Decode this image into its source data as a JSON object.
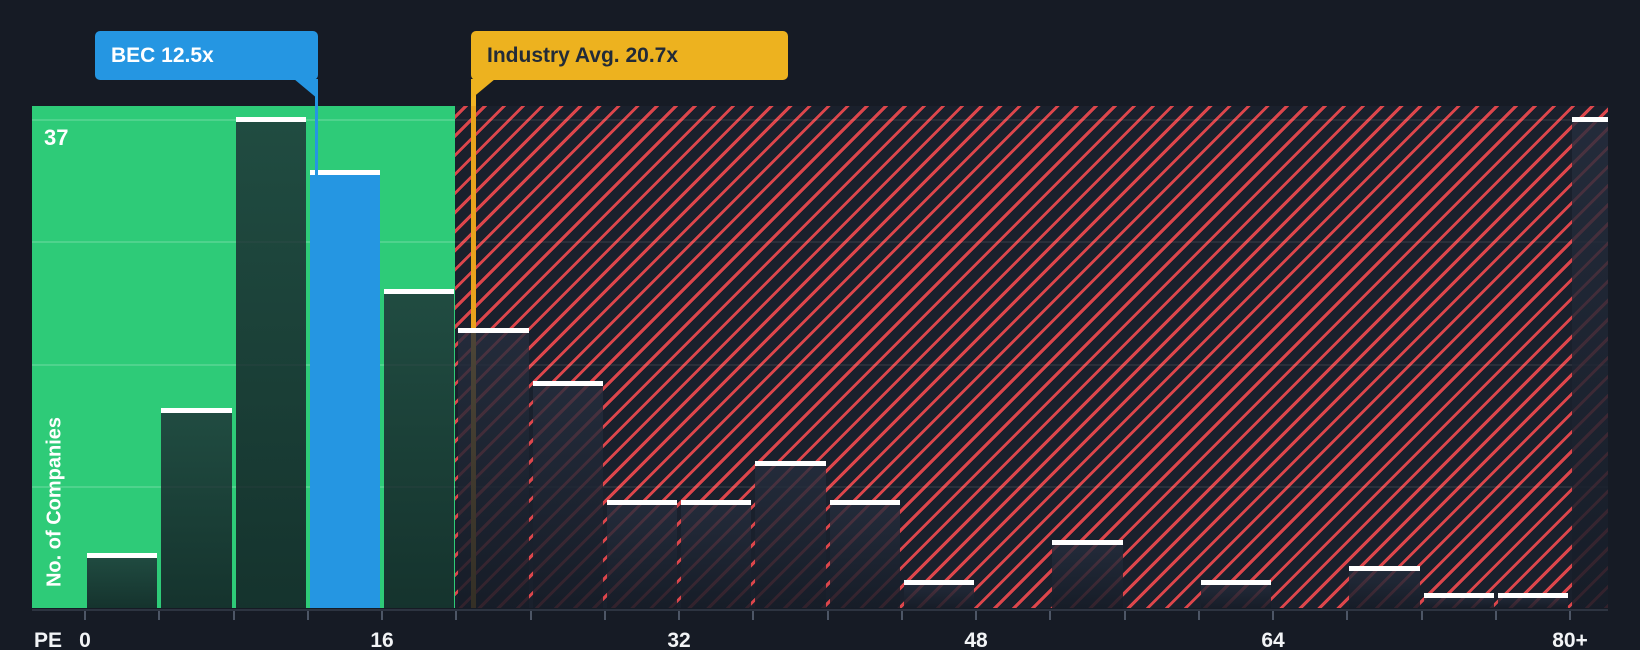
{
  "chart": {
    "x_axis_title": "PE",
    "y_axis_label": "No. of Companies",
    "y_max_label": "37"
  },
  "callouts": {
    "company": {
      "label": "BEC 12.5x",
      "value": 12.5,
      "color": "#2596e2"
    },
    "industry": {
      "label": "Industry Avg. 20.7x",
      "value": 20.7,
      "color": "#edb21f"
    }
  },
  "chart_data": {
    "type": "bar",
    "xlabel": "PE",
    "ylabel": "No. of Companies",
    "y_max": 37,
    "bucket_size": 4,
    "x_ticks": [
      {
        "label": "0",
        "value": 0
      },
      {
        "label": "16",
        "value": 16
      },
      {
        "label": "32",
        "value": 32
      },
      {
        "label": "48",
        "value": 48
      },
      {
        "label": "64",
        "value": 64
      },
      {
        "label": "80+",
        "value": 80
      }
    ],
    "buckets": [
      {
        "label": "0-4",
        "start": 0,
        "end": 4,
        "count": 4,
        "zone": "below"
      },
      {
        "label": "4-8",
        "start": 4,
        "end": 8,
        "count": 15,
        "zone": "below"
      },
      {
        "label": "8-12",
        "start": 8,
        "end": 12,
        "count": 37,
        "zone": "below"
      },
      {
        "label": "12-16",
        "start": 12,
        "end": 16,
        "count": 33,
        "zone": "below",
        "highlight": "company"
      },
      {
        "label": "16-20",
        "start": 16,
        "end": 20,
        "count": 24,
        "zone": "below"
      },
      {
        "label": "20-24",
        "start": 20,
        "end": 24,
        "count": 21,
        "zone": "above"
      },
      {
        "label": "24-28",
        "start": 24,
        "end": 28,
        "count": 17,
        "zone": "above"
      },
      {
        "label": "28-32",
        "start": 28,
        "end": 32,
        "count": 8,
        "zone": "above"
      },
      {
        "label": "32-36",
        "start": 32,
        "end": 36,
        "count": 8,
        "zone": "above"
      },
      {
        "label": "36-40",
        "start": 36,
        "end": 40,
        "count": 11,
        "zone": "above"
      },
      {
        "label": "40-44",
        "start": 40,
        "end": 44,
        "count": 8,
        "zone": "above"
      },
      {
        "label": "44-48",
        "start": 44,
        "end": 48,
        "count": 2,
        "zone": "above"
      },
      {
        "label": "48-52",
        "start": 48,
        "end": 52,
        "count": 0,
        "zone": "above"
      },
      {
        "label": "52-56",
        "start": 52,
        "end": 56,
        "count": 5,
        "zone": "above"
      },
      {
        "label": "56-60",
        "start": 56,
        "end": 60,
        "count": 0,
        "zone": "above"
      },
      {
        "label": "60-64",
        "start": 60,
        "end": 64,
        "count": 2,
        "zone": "above"
      },
      {
        "label": "64-68",
        "start": 64,
        "end": 68,
        "count": 0,
        "zone": "above"
      },
      {
        "label": "68-72",
        "start": 68,
        "end": 72,
        "count": 3,
        "zone": "above"
      },
      {
        "label": "72-76",
        "start": 72,
        "end": 76,
        "count": 1,
        "zone": "above"
      },
      {
        "label": "76-80",
        "start": 76,
        "end": 80,
        "count": 1,
        "zone": "above"
      },
      {
        "label": "80+",
        "start": 80,
        "end": null,
        "count": 37,
        "zone": "above"
      }
    ],
    "markers": [
      {
        "name": "company",
        "label": "BEC 12.5x",
        "value": 12.5,
        "color": "#2596e2"
      },
      {
        "name": "industry_average",
        "label": "Industry Avg. 20.7x",
        "value": 20.7,
        "color": "#edb21f"
      }
    ],
    "zones": [
      {
        "name": "below_industry_average",
        "range": [
          0,
          20
        ],
        "color": "#2ecb78"
      },
      {
        "name": "above_industry_average",
        "range": [
          20,
          84
        ],
        "style": "red-hatch",
        "stripe_color": "#e5484d"
      }
    ],
    "grid": "quarter-lines",
    "legend": "none"
  },
  "colors": {
    "background": "#161b25",
    "green_zone": "#2ecb78",
    "hatch_background": "#1a202c",
    "hatch_stripe": "#e5484d",
    "company_blue": "#2596e2",
    "industry_yellow": "#edb21f",
    "bar_cap_white": "#ffffff"
  }
}
